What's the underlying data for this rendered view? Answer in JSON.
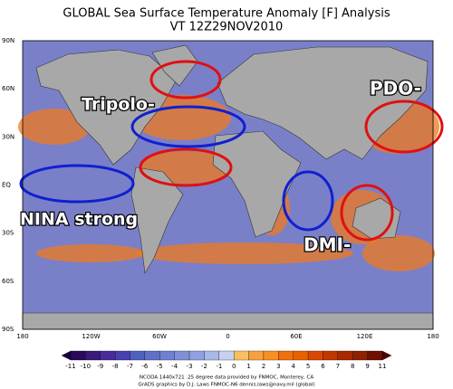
{
  "header": {
    "title": "GLOBAL Sea Surface Temperature Anomaly [F] Analysis",
    "subtitle": "VT 12Z29NOV2010"
  },
  "map": {
    "lat_labels": [
      "90N",
      "60N",
      "30N",
      "EQ",
      "30S",
      "60S",
      "90S"
    ],
    "lon_labels": [
      "180",
      "120W",
      "60W",
      "0",
      "60E",
      "120E",
      "180"
    ],
    "annotations": [
      "Tripolo-",
      "PDO-",
      "NINA strong",
      "DMI-"
    ]
  },
  "colorbar": {
    "labels": [
      "-11",
      "-10",
      "-9",
      "-8",
      "-7",
      "-6",
      "-5",
      "-4",
      "-3",
      "-2",
      "-1",
      "0",
      "1",
      "2",
      "3",
      "4",
      "5",
      "6",
      "7",
      "8",
      "9",
      "11"
    ]
  },
  "footer": {
    "lines": [
      "NCODA 1440x721 .25 degree data provided by FNMOC, Monterey, CA",
      "GrADS graphics by D.J. Laws FNMOC-N6 dennis.laws@navy.mil (global)"
    ]
  }
}
